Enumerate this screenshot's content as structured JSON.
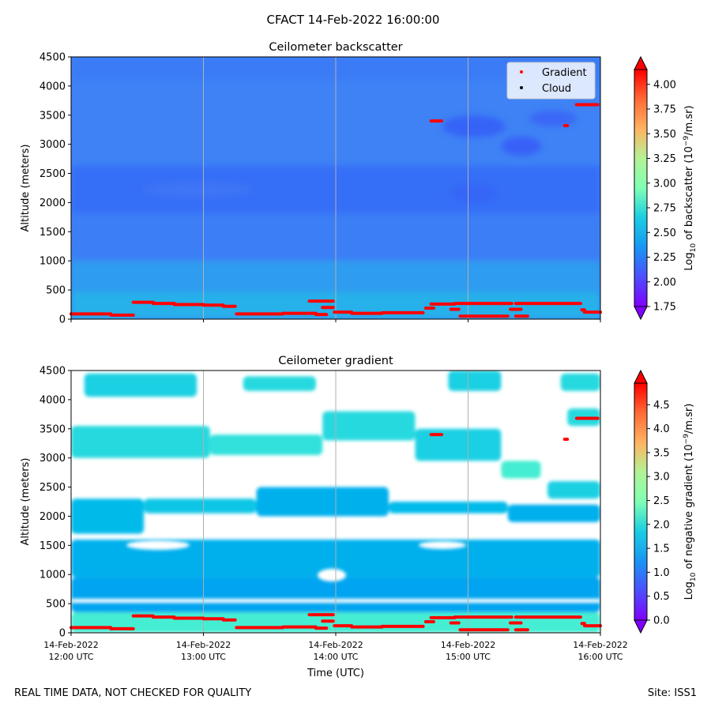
{
  "figure": {
    "title": "CFACT 14-Feb-2022 16:00:00",
    "footer_left": "REAL TIME DATA, NOT CHECKED FOR QUALITY",
    "footer_right": "Site: ISS1",
    "xlabel": "Time (UTC)"
  },
  "chart_data": [
    {
      "type": "heatmap",
      "title": "Ceilometer backscatter",
      "ylabel": "Altitude (meters)",
      "ylim": [
        0,
        4500
      ],
      "yticks": [
        0,
        500,
        1000,
        1500,
        2000,
        2500,
        3000,
        3500,
        4000,
        4500
      ],
      "xlim_hours": [
        12,
        16
      ],
      "x_ticks_hours": [
        12,
        13,
        14,
        15,
        16
      ],
      "x_tick_labels": [],
      "grid": "vertical-at-hour-ticks",
      "legend": {
        "placement": "top-right",
        "entries": [
          {
            "label": "Gradient",
            "color": "#ff0000"
          },
          {
            "label": "Cloud",
            "color": "#000000"
          }
        ]
      },
      "colorbar": {
        "label_pre": "Log",
        "label_sub": "10",
        "label_mid": " of backscatter (10",
        "label_sup": "−9",
        "label_post": "/m.sr)",
        "vmin": 1.75,
        "vmax": 4.15,
        "ticks": [
          1.75,
          2.0,
          2.25,
          2.5,
          2.75,
          3.0,
          3.25,
          3.5,
          3.75,
          4.0
        ],
        "tick_labels": [
          "1.75",
          "2.00",
          "2.25",
          "2.50",
          "2.75",
          "3.00",
          "3.25",
          "3.50",
          "3.75",
          "4.00"
        ],
        "extend": "both",
        "colormap": "rainbow"
      },
      "gradient_points": [
        {
          "t0": 12.0,
          "t1": 12.3,
          "alt": 90
        },
        {
          "t0": 12.3,
          "t1": 12.47,
          "alt": 70
        },
        {
          "t0": 12.47,
          "t1": 12.62,
          "alt": 290
        },
        {
          "t0": 12.62,
          "t1": 12.78,
          "alt": 270
        },
        {
          "t0": 12.78,
          "t1": 13.0,
          "alt": 250
        },
        {
          "t0": 13.0,
          "t1": 13.15,
          "alt": 240
        },
        {
          "t0": 13.15,
          "t1": 13.24,
          "alt": 220
        },
        {
          "t0": 13.25,
          "t1": 13.6,
          "alt": 90
        },
        {
          "t0": 13.6,
          "t1": 13.85,
          "alt": 100
        },
        {
          "t0": 13.85,
          "t1": 13.93,
          "alt": 80
        },
        {
          "t0": 13.8,
          "t1": 13.98,
          "alt": 310
        },
        {
          "t0": 13.9,
          "t1": 13.98,
          "alt": 200
        },
        {
          "t0": 13.99,
          "t1": 14.12,
          "alt": 120
        },
        {
          "t0": 14.12,
          "t1": 14.35,
          "alt": 100
        },
        {
          "t0": 14.35,
          "t1": 14.66,
          "alt": 110
        },
        {
          "t0": 14.68,
          "t1": 14.74,
          "alt": 190
        },
        {
          "t0": 14.72,
          "t1": 14.9,
          "alt": 260
        },
        {
          "t0": 14.87,
          "t1": 14.93,
          "alt": 170
        },
        {
          "t0": 14.9,
          "t1": 15.33,
          "alt": 270
        },
        {
          "t0": 14.94,
          "t1": 15.3,
          "alt": 50
        },
        {
          "t0": 15.36,
          "t1": 15.45,
          "alt": 50
        },
        {
          "t0": 15.32,
          "t1": 15.4,
          "alt": 170
        },
        {
          "t0": 15.36,
          "t1": 15.85,
          "alt": 270
        },
        {
          "t0": 15.86,
          "t1": 15.88,
          "alt": 160
        },
        {
          "t0": 15.88,
          "t1": 16.0,
          "alt": 120
        },
        {
          "t0": 14.72,
          "t1": 14.8,
          "alt": 3400
        },
        {
          "t0": 15.73,
          "t1": 15.75,
          "alt": 3320
        },
        {
          "t0": 15.82,
          "t1": 15.98,
          "alt": 3680
        }
      ]
    },
    {
      "type": "heatmap",
      "title": "Ceilometer gradient",
      "ylabel": "Altitude (meters)",
      "ylim": [
        0,
        4500
      ],
      "yticks": [
        0,
        500,
        1000,
        1500,
        2000,
        2500,
        3000,
        3500,
        4000,
        4500
      ],
      "xlim_hours": [
        12,
        16
      ],
      "x_ticks_hours": [
        12,
        13,
        14,
        15,
        16
      ],
      "x_tick_labels": [
        {
          "date": "14-Feb-2022",
          "time": "12:00 UTC"
        },
        {
          "date": "14-Feb-2022",
          "time": "13:00 UTC"
        },
        {
          "date": "14-Feb-2022",
          "time": "14:00 UTC"
        },
        {
          "date": "14-Feb-2022",
          "time": "15:00 UTC"
        },
        {
          "date": "14-Feb-2022",
          "time": "16:00 UTC"
        }
      ],
      "grid": "vertical-at-hour-ticks",
      "colorbar": {
        "label_pre": "Log",
        "label_sub": "10",
        "label_mid": " of negative gradient (10",
        "label_sup": "−9",
        "label_post": "/m.sr)",
        "vmin": 0.0,
        "vmax": 4.95,
        "ticks": [
          0.0,
          0.5,
          1.0,
          1.5,
          2.0,
          2.5,
          3.0,
          3.5,
          4.0,
          4.5
        ],
        "tick_labels": [
          "0.0",
          "0.5",
          "1.0",
          "1.5",
          "2.0",
          "2.5",
          "3.0",
          "3.5",
          "4.0",
          "4.5"
        ],
        "extend": "both",
        "colormap": "rainbow"
      },
      "cloud_bands": [
        {
          "t0": 12.0,
          "t1": 16.0,
          "alt0": 0,
          "alt1": 350,
          "value": 1.9
        },
        {
          "t0": 12.0,
          "t1": 16.0,
          "alt0": 350,
          "alt1": 950,
          "value": 1.1
        },
        {
          "t0": 12.0,
          "t1": 16.0,
          "alt0": 950,
          "alt1": 1600,
          "value": 1.2
        },
        {
          "t0": 12.0,
          "t1": 12.55,
          "alt0": 1700,
          "alt1": 2300,
          "value": 1.3
        },
        {
          "t0": 12.55,
          "t1": 13.4,
          "alt0": 2050,
          "alt1": 2300,
          "value": 1.4
        },
        {
          "t0": 13.4,
          "t1": 14.4,
          "alt0": 2000,
          "alt1": 2500,
          "value": 1.2
        },
        {
          "t0": 14.4,
          "t1": 15.3,
          "alt0": 2050,
          "alt1": 2250,
          "value": 1.3
        },
        {
          "t0": 15.3,
          "t1": 16.0,
          "alt0": 1900,
          "alt1": 2200,
          "value": 1.2
        },
        {
          "t0": 15.6,
          "t1": 16.0,
          "alt0": 2300,
          "alt1": 2600,
          "value": 1.5
        },
        {
          "t0": 12.0,
          "t1": 13.05,
          "alt0": 3000,
          "alt1": 3550,
          "value": 1.6
        },
        {
          "t0": 13.05,
          "t1": 13.9,
          "alt0": 3050,
          "alt1": 3400,
          "value": 1.7
        },
        {
          "t0": 13.9,
          "t1": 14.6,
          "alt0": 3300,
          "alt1": 3800,
          "value": 1.6
        },
        {
          "t0": 14.6,
          "t1": 15.25,
          "alt0": 2950,
          "alt1": 3500,
          "value": 1.5
        },
        {
          "t0": 15.25,
          "t1": 15.55,
          "alt0": 2650,
          "alt1": 2950,
          "value": 1.9
        },
        {
          "t0": 15.75,
          "t1": 16.0,
          "alt0": 3550,
          "alt1": 3850,
          "value": 1.6
        },
        {
          "t0": 12.1,
          "t1": 12.95,
          "alt0": 4050,
          "alt1": 4450,
          "value": 1.5
        },
        {
          "t0": 13.3,
          "t1": 13.85,
          "alt0": 4150,
          "alt1": 4400,
          "value": 1.6
        },
        {
          "t0": 14.85,
          "t1": 15.25,
          "alt0": 4150,
          "alt1": 4500,
          "value": 1.5
        },
        {
          "t0": 15.7,
          "t1": 16.0,
          "alt0": 4150,
          "alt1": 4450,
          "value": 1.6
        }
      ],
      "gradient_points_ref": "same as backscatter panel"
    }
  ]
}
